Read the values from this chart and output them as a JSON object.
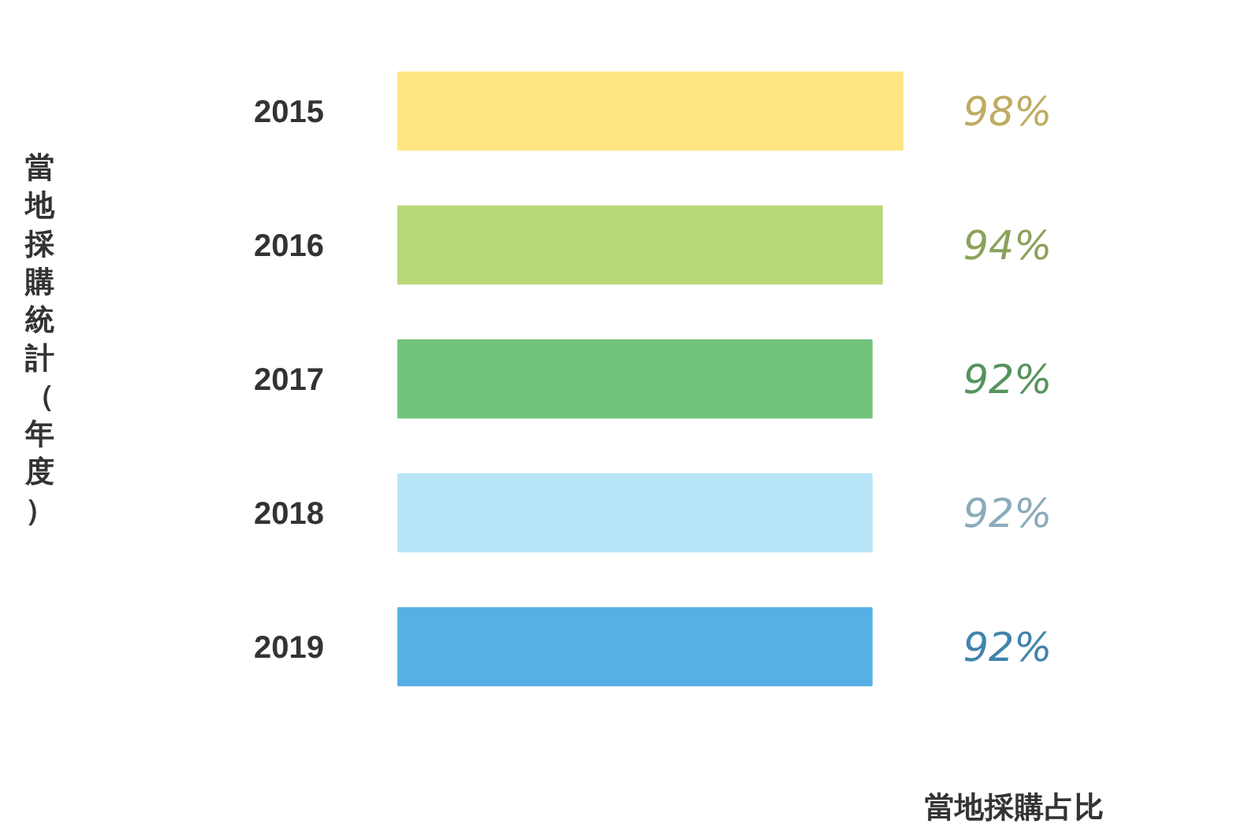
{
  "chart_data": {
    "type": "bar",
    "orientation": "horizontal",
    "xlabel": "當地採購占比",
    "ylabel": "當地採購統計（年度）",
    "categories": [
      "2015",
      "2016",
      "2017",
      "2018",
      "2019"
    ],
    "values": [
      98,
      94,
      92,
      92,
      92
    ],
    "colors": [
      "#ffe682",
      "#b8d878",
      "#72c47c",
      "#b8e4f8",
      "#56b0e4"
    ],
    "value_labels": [
      "98%",
      "94%",
      "92%",
      "92%",
      "92%"
    ],
    "grid": false,
    "legend": false
  }
}
